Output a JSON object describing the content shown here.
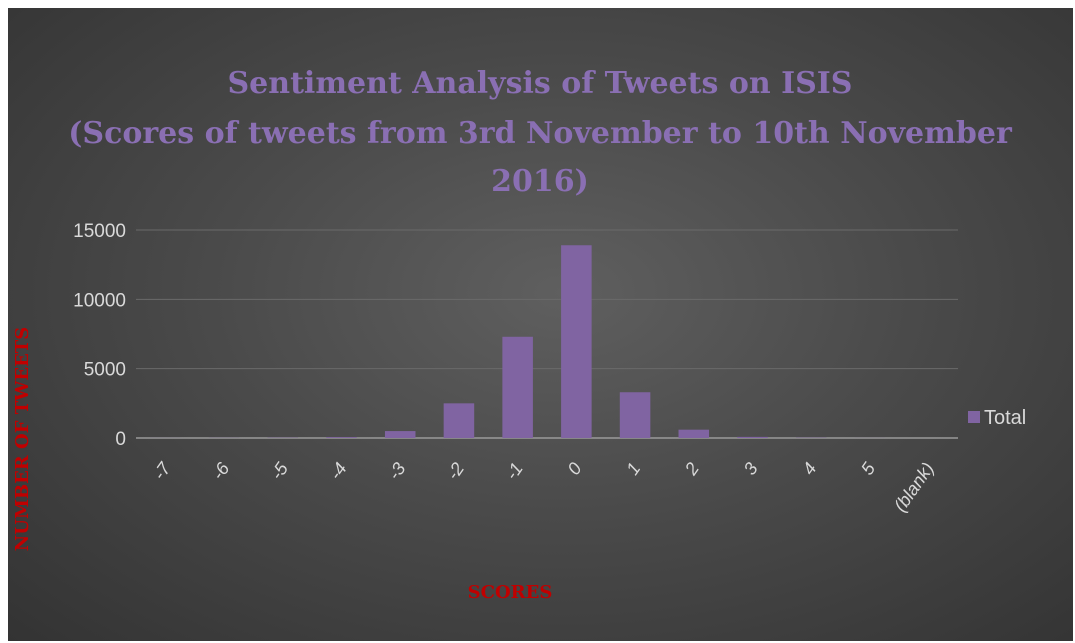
{
  "chart_data": {
    "type": "bar",
    "title_lines": [
      "Sentiment Analysis of Tweets on ISIS",
      "(Scores of tweets from 3rd November to 10th November",
      "2016)"
    ],
    "xlabel": "SCORES",
    "ylabel": "NUMBER OF TWEETS",
    "categories": [
      "-7",
      "-6",
      "-5",
      "-4",
      "-3",
      "-2",
      "-1",
      "0",
      "1",
      "2",
      "3",
      "4",
      "5",
      "(blank)"
    ],
    "series": [
      {
        "name": "Total",
        "color": "#8064a2",
        "values": [
          5,
          10,
          20,
          60,
          500,
          2500,
          7300,
          13900,
          3300,
          600,
          80,
          20,
          5,
          0
        ]
      }
    ],
    "ylim": [
      0,
      15000
    ],
    "yticks": [
      0,
      5000,
      10000,
      15000
    ],
    "grid": true,
    "legend_position": "right",
    "colors": {
      "title": "#8a6fb3",
      "axis_title": "#c00000",
      "tick_text": "#d9d9d9"
    }
  }
}
